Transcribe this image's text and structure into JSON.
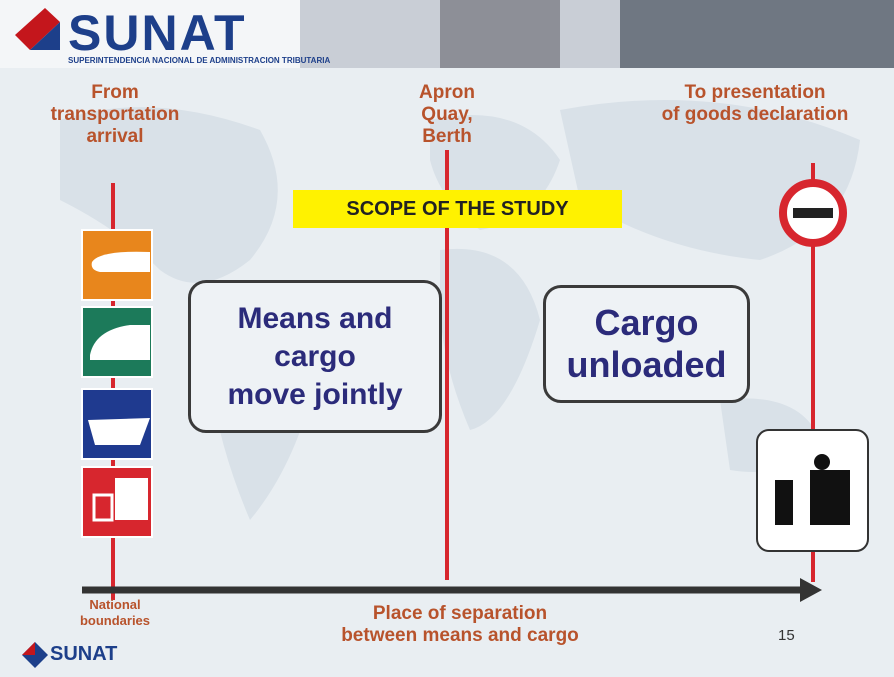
{
  "header": {
    "logo": "SUNAT",
    "logo_subtitle": "SUPERINTENDENCIA NACIONAL DE ADMINISTRACION TRIBUTARIA"
  },
  "milestones": [
    {
      "lines": [
        "From",
        "transportation",
        "arrival"
      ]
    },
    {
      "lines": [
        "Apron",
        "Quay,",
        "Berth"
      ]
    },
    {
      "lines": [
        "To presentation",
        "of goods declaration"
      ]
    }
  ],
  "scope_label": "SCOPE OF THE STUDY",
  "phases": [
    {
      "lines": [
        "Means and",
        "cargo",
        "move jointly"
      ]
    },
    {
      "lines": [
        "Cargo",
        "unloaded"
      ]
    }
  ],
  "boundary_label": [
    "National",
    "boundaries"
  ],
  "separation_label": [
    "Place of separation",
    "between means and cargo"
  ],
  "page_number": "15",
  "footer_logo": "SUNAT"
}
